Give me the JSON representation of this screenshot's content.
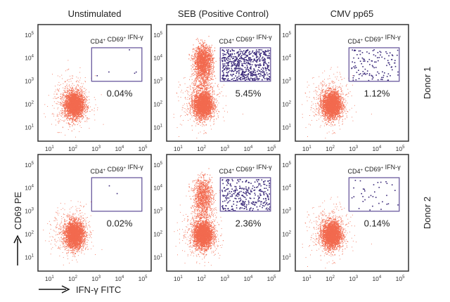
{
  "chart_data": {
    "type": "scatter",
    "x_label": "IFN-γ FITC",
    "y_label": "CD69 PE",
    "x_scale": "log",
    "y_scale": "log",
    "x_range": [
      2.8,
      200000
    ],
    "y_range": [
      2.6,
      280000
    ],
    "tick_labels": [
      "10",
      "10",
      "10",
      "10",
      "10"
    ],
    "tick_exponents": [
      "1",
      "2",
      "3",
      "4",
      "5"
    ],
    "columns": [
      "Unstimulated",
      "SEB (Positive Control)",
      "CMV pp65"
    ],
    "rows": [
      "Donor 1",
      "Donor 2"
    ],
    "gate_label": {
      "base1": "CD4",
      "base2": "CD69",
      "base3": "IFN-γ",
      "sup": "+"
    },
    "gate": {
      "x": [
        560,
        80000
      ],
      "y": [
        1000,
        28000
      ]
    },
    "population_color": "#f26a4f",
    "gated_color": "#3b2a7a",
    "gate_color": "#6a5a9e",
    "panels": [
      {
        "row": 0,
        "col": 0,
        "percent": "0.04%",
        "gated_events": 5,
        "activated_population": false
      },
      {
        "row": 0,
        "col": 1,
        "percent": "5.45%",
        "gated_events": 600,
        "activated_population": true
      },
      {
        "row": 0,
        "col": 2,
        "percent": "1.12%",
        "gated_events": 120,
        "activated_population": false
      },
      {
        "row": 1,
        "col": 0,
        "percent": "0.02%",
        "gated_events": 2,
        "activated_population": false
      },
      {
        "row": 1,
        "col": 1,
        "percent": "2.36%",
        "gated_events": 300,
        "activated_population": true
      },
      {
        "row": 1,
        "col": 2,
        "percent": "0.14%",
        "gated_events": 35,
        "activated_population": false
      }
    ]
  }
}
